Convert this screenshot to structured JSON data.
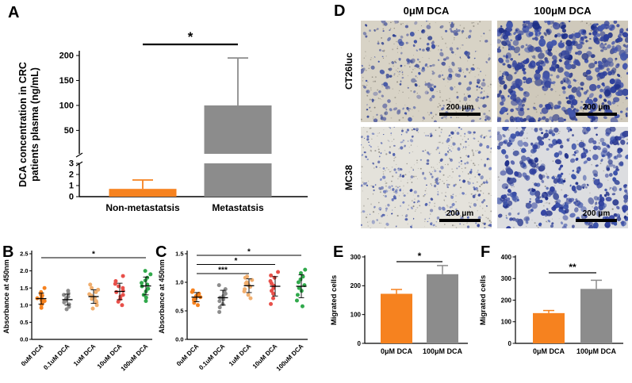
{
  "panels": {
    "A": {
      "label": "A"
    },
    "B": {
      "label": "B"
    },
    "C": {
      "label": "C"
    },
    "D": {
      "label": "D",
      "col_labels": [
        "0μM DCA",
        "100μM DCA"
      ],
      "row_labels": [
        "CT26luc",
        "MC38"
      ],
      "scalebar": "200 μm"
    },
    "E": {
      "label": "E"
    },
    "F": {
      "label": "F"
    }
  },
  "chart_data": [
    {
      "id": "A",
      "type": "bar",
      "ylabel": "DCA concentration in CRC patients plasma (ng/mL)",
      "ylabel_lines": [
        "DCA concentration in CRC",
        "patients plasma (ng/mL)"
      ],
      "categories": [
        "Non-metastatsis",
        "Metastatsis"
      ],
      "values": [
        0.7,
        100
      ],
      "errors": [
        0.8,
        95
      ],
      "bar_colors": [
        "#F6821F",
        "#8C8C8C"
      ],
      "axis_break": {
        "lower_range": [
          0,
          3
        ],
        "lower_ticks": [
          0,
          1,
          2,
          3
        ],
        "upper_range": [
          3,
          200
        ],
        "upper_ticks": [
          50,
          100,
          150,
          200
        ]
      },
      "significance": [
        {
          "from": 0,
          "to": 1,
          "label": "*"
        }
      ]
    },
    {
      "id": "B",
      "type": "scatter",
      "ylabel": "Absorbance at 450nm",
      "ylim": [
        0,
        2.5
      ],
      "yticks": [
        0,
        0.5,
        1,
        1.5,
        2,
        2.5
      ],
      "categories": [
        "0uM DCA",
        "0.1uM DCA",
        "1uM DCA",
        "10uM DCA",
        "100uM DCA"
      ],
      "group_colors": [
        "#F6821F",
        "#8C8C8C",
        "#F0AE6E",
        "#E8504A",
        "#31A94C"
      ],
      "points": [
        [
          0.92,
          1.0,
          1.05,
          1.1,
          1.12,
          1.15,
          1.2,
          1.22,
          1.28,
          1.32,
          1.38,
          1.5
        ],
        [
          0.88,
          0.95,
          1.02,
          1.08,
          1.1,
          1.14,
          1.18,
          1.2,
          1.25,
          1.3,
          1.35,
          1.42
        ],
        [
          0.9,
          1.0,
          1.08,
          1.12,
          1.18,
          1.22,
          1.28,
          1.32,
          1.38,
          1.45,
          1.5,
          1.6
        ],
        [
          1.0,
          1.1,
          1.18,
          1.25,
          1.3,
          1.38,
          1.42,
          1.5,
          1.55,
          1.62,
          1.7,
          1.85
        ],
        [
          1.12,
          1.22,
          1.3,
          1.4,
          1.48,
          1.55,
          1.6,
          1.65,
          1.72,
          1.8,
          1.9,
          2.0
        ]
      ],
      "means": [
        1.19,
        1.16,
        1.25,
        1.4,
        1.56
      ],
      "sds": [
        0.16,
        0.16,
        0.2,
        0.24,
        0.26
      ],
      "significance": [
        {
          "from": 0,
          "to": 4,
          "label": "*"
        }
      ]
    },
    {
      "id": "C",
      "type": "scatter",
      "ylabel": "Absorbance at 450nm",
      "ylim": [
        0,
        1.5
      ],
      "yticks": [
        0,
        0.5,
        1,
        1.5
      ],
      "categories": [
        "0uM DCA",
        "0.1uM DCA",
        "1uM DCA",
        "10uM DCA",
        "100uM DCA"
      ],
      "group_colors": [
        "#F6821F",
        "#8C8C8C",
        "#F0AE6E",
        "#E8504A",
        "#31A94C"
      ],
      "points": [
        [
          0.6,
          0.64,
          0.68,
          0.7,
          0.72,
          0.74,
          0.76,
          0.78,
          0.8,
          0.83,
          0.86
        ],
        [
          0.48,
          0.56,
          0.62,
          0.67,
          0.7,
          0.73,
          0.76,
          0.8,
          0.84,
          0.88,
          0.95
        ],
        [
          0.72,
          0.78,
          0.84,
          0.88,
          0.92,
          0.95,
          0.98,
          1.0,
          1.04,
          1.08,
          1.1
        ],
        [
          0.62,
          0.72,
          0.8,
          0.85,
          0.9,
          0.94,
          0.98,
          1.02,
          1.08,
          1.12,
          1.18
        ],
        [
          0.58,
          0.68,
          0.78,
          0.85,
          0.9,
          0.95,
          1.0,
          1.05,
          1.1,
          1.16,
          1.22
        ]
      ],
      "means": [
        0.74,
        0.73,
        0.94,
        0.93,
        0.93
      ],
      "sds": [
        0.08,
        0.13,
        0.12,
        0.17,
        0.2
      ],
      "significance": [
        {
          "from": 0,
          "to": 2,
          "label": "***"
        },
        {
          "from": 0,
          "to": 3,
          "label": "*"
        },
        {
          "from": 0,
          "to": 4,
          "label": "*"
        }
      ]
    },
    {
      "id": "E",
      "type": "bar",
      "ylabel": "Migrated cells",
      "ylim": [
        0,
        300
      ],
      "yticks": [
        0,
        100,
        200,
        300
      ],
      "categories": [
        "0μM DCA",
        "100μM DCA"
      ],
      "values": [
        172,
        240
      ],
      "errors": [
        15,
        30
      ],
      "bar_colors": [
        "#F6821F",
        "#8C8C8C"
      ],
      "significance": [
        {
          "from": 0,
          "to": 1,
          "label": "*"
        }
      ]
    },
    {
      "id": "F",
      "type": "bar",
      "ylabel": "Migrated cells",
      "ylim": [
        0,
        400
      ],
      "yticks": [
        0,
        100,
        200,
        300,
        400
      ],
      "categories": [
        "0μM DCA",
        "100μM DCA"
      ],
      "values": [
        140,
        252
      ],
      "errors": [
        12,
        40
      ],
      "bar_colors": [
        "#F6821F",
        "#8C8C8C"
      ],
      "significance": [
        {
          "from": 0,
          "to": 1,
          "label": "**"
        }
      ]
    }
  ]
}
